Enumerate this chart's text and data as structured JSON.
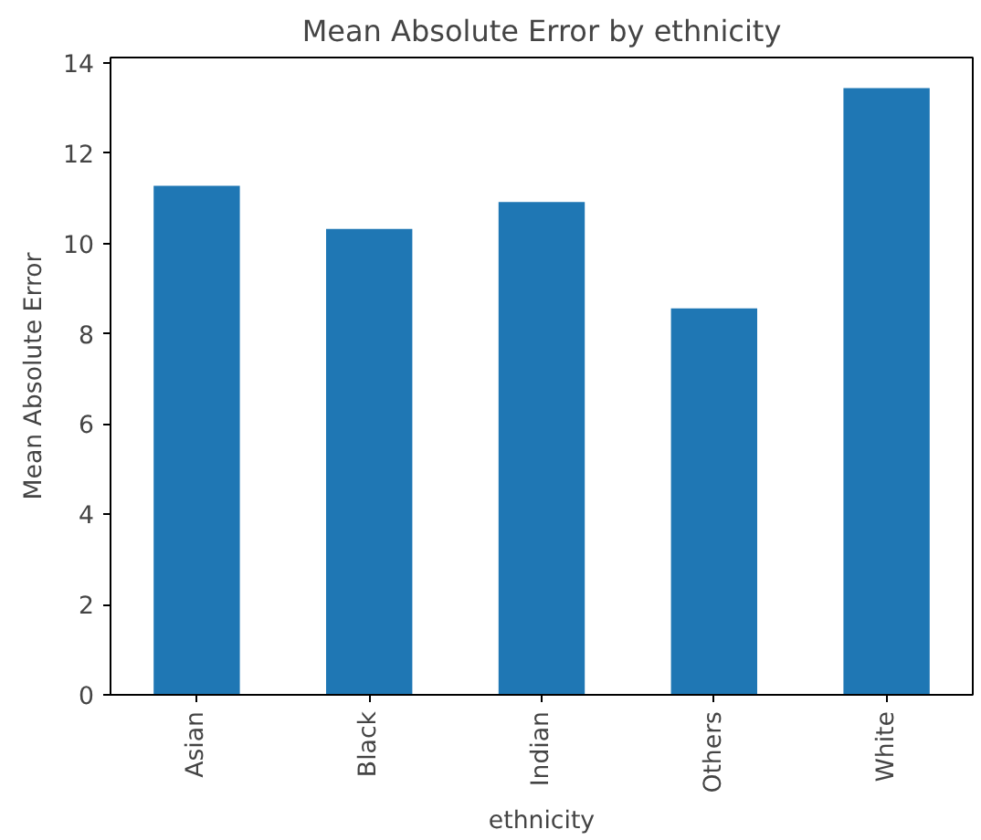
{
  "chart_data": {
    "type": "bar",
    "title": "Mean Absolute Error by ethnicity",
    "xlabel": "ethnicity",
    "ylabel": "Mean Absolute Error",
    "categories": [
      "Asian",
      "Black",
      "Indian",
      "Others",
      "White"
    ],
    "values": [
      11.28,
      10.32,
      10.92,
      8.56,
      13.44
    ],
    "color": "#1f77b4",
    "ylim": [
      0,
      14.12
    ],
    "yticks": [
      0,
      2,
      4,
      6,
      8,
      10,
      12,
      14
    ],
    "grid": false
  }
}
